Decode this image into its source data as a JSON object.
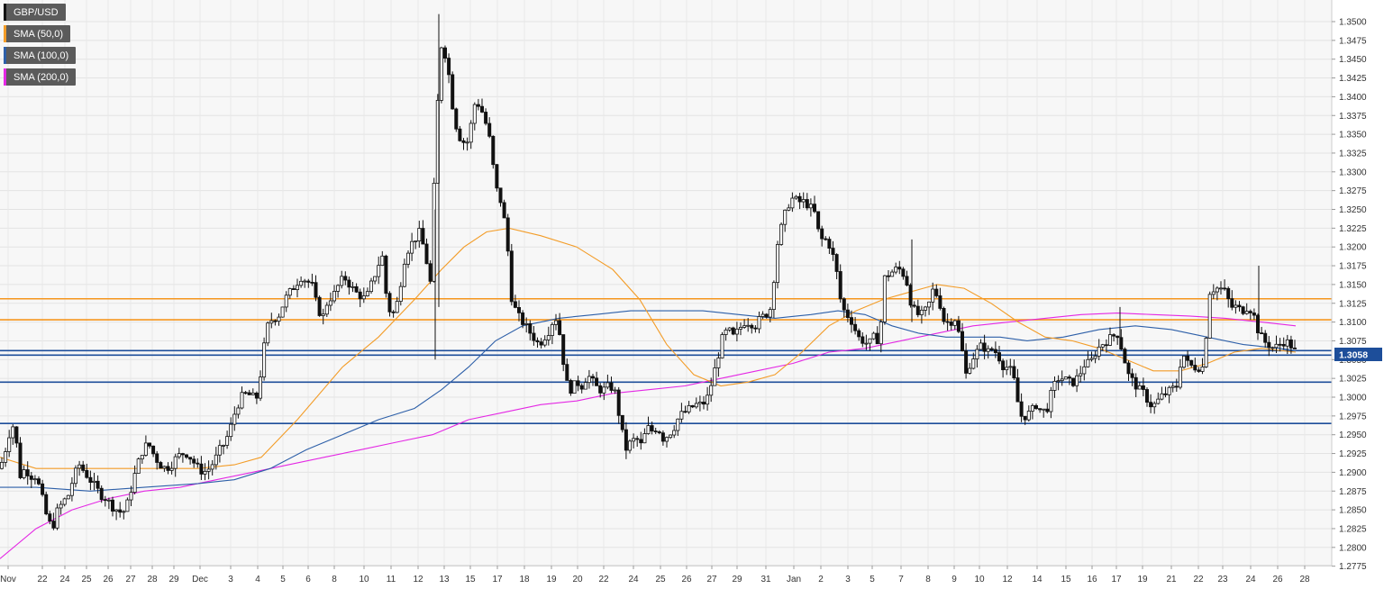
{
  "legend": [
    {
      "label": "GBP/USD",
      "color": "#000000"
    },
    {
      "label": "SMA (50,0)",
      "color": "#f39c27"
    },
    {
      "label": "SMA (100,0)",
      "color": "#2d5fa8"
    },
    {
      "label": "SMA (200,0)",
      "color": "#e428e4"
    }
  ],
  "last_price": "1.3058",
  "chart_data": {
    "type": "candlestick",
    "ylim": [
      1.2765,
      1.3515
    ],
    "y_ticks": [
      "1.3500",
      "1.3475",
      "1.3450",
      "1.3425",
      "1.3400",
      "1.3375",
      "1.3350",
      "1.3325",
      "1.3300",
      "1.3275",
      "1.3250",
      "1.3225",
      "1.3200",
      "1.3175",
      "1.3150",
      "1.3125",
      "1.3100",
      "1.3075",
      "1.3050",
      "1.3025",
      "1.3000",
      "1.2975",
      "1.2950",
      "1.2925",
      "1.2900",
      "1.2875",
      "1.2850",
      "1.2825",
      "1.2800",
      "1.2775"
    ],
    "x_labels": [
      "Nov",
      "22",
      "24",
      "25",
      "26",
      "27",
      "28",
      "29",
      "Dec",
      "3",
      "4",
      "5",
      "6",
      "8",
      "10",
      "11",
      "12",
      "13",
      "15",
      "17",
      "18",
      "19",
      "20",
      "22",
      "24",
      "25",
      "26",
      "27",
      "29",
      "31",
      "Jan",
      "2",
      "3",
      "5",
      "7",
      "8",
      "9",
      "10",
      "12",
      "14",
      "15",
      "16",
      "17",
      "19",
      "21",
      "22",
      "23",
      "24",
      "26",
      "28"
    ],
    "horizontal_levels": [
      {
        "value": 1.3131,
        "color": "#f5961e"
      },
      {
        "value": 1.3103,
        "color": "#f5961e"
      },
      {
        "value": 1.3062,
        "color": "#1d4e9a"
      },
      {
        "value": 1.3056,
        "color": "#1d4e9a"
      },
      {
        "value": 1.302,
        "color": "#1d4e9a"
      },
      {
        "value": 1.2965,
        "color": "#1d4e9a"
      }
    ],
    "anchors": [
      [
        0,
        1.2905
      ],
      [
        6,
        1.293
      ],
      [
        11,
        1.2955
      ],
      [
        16,
        1.2965
      ],
      [
        22,
        1.2895
      ],
      [
        28,
        1.2905
      ],
      [
        34,
        1.2895
      ],
      [
        40,
        1.2895
      ],
      [
        46,
        1.287
      ],
      [
        52,
        1.284
      ],
      [
        58,
        1.2825
      ],
      [
        64,
        1.285
      ],
      [
        70,
        1.286
      ],
      [
        76,
        1.287
      ],
      [
        82,
        1.2895
      ],
      [
        88,
        1.291
      ],
      [
        94,
        1.29
      ],
      [
        100,
        1.289
      ],
      [
        106,
        1.288
      ],
      [
        112,
        1.287
      ],
      [
        118,
        1.2865
      ],
      [
        124,
        1.2855
      ],
      [
        130,
        1.285
      ],
      [
        136,
        1.2845
      ],
      [
        142,
        1.286
      ],
      [
        148,
        1.289
      ],
      [
        154,
        1.2915
      ],
      [
        160,
        1.2935
      ],
      [
        166,
        1.2935
      ],
      [
        172,
        1.292
      ],
      [
        178,
        1.291
      ],
      [
        184,
        1.2905
      ],
      [
        190,
        1.291
      ],
      [
        196,
        1.292
      ],
      [
        202,
        1.2925
      ],
      [
        208,
        1.2925
      ],
      [
        214,
        1.2915
      ],
      [
        220,
        1.2905
      ],
      [
        226,
        1.29
      ],
      [
        232,
        1.2905
      ],
      [
        238,
        1.2915
      ],
      [
        244,
        1.293
      ],
      [
        250,
        1.294
      ],
      [
        256,
        1.296
      ],
      [
        262,
        1.2985
      ],
      [
        268,
        1.3
      ],
      [
        274,
        1.3005
      ],
      [
        280,
        1.3
      ],
      [
        286,
        1.3
      ],
      [
        292,
        1.306
      ],
      [
        298,
        1.31
      ],
      [
        304,
        1.3105
      ],
      [
        310,
        1.311
      ],
      [
        316,
        1.313
      ],
      [
        322,
        1.314
      ],
      [
        328,
        1.315
      ],
      [
        334,
        1.316
      ],
      [
        340,
        1.3155
      ],
      [
        346,
        1.315
      ],
      [
        352,
        1.312
      ],
      [
        358,
        1.3105
      ],
      [
        364,
        1.313
      ],
      [
        370,
        1.3135
      ],
      [
        376,
        1.315
      ],
      [
        382,
        1.316
      ],
      [
        388,
        1.315
      ],
      [
        394,
        1.314
      ],
      [
        400,
        1.3135
      ],
      [
        406,
        1.313
      ],
      [
        412,
        1.315
      ],
      [
        418,
        1.317
      ],
      [
        424,
        1.319
      ],
      [
        430,
        1.312
      ],
      [
        436,
        1.311
      ],
      [
        442,
        1.313
      ],
      [
        448,
        1.318
      ],
      [
        454,
        1.32
      ],
      [
        460,
        1.321
      ],
      [
        466,
        1.322
      ],
      [
        472,
        1.319
      ],
      [
        478,
        1.315
      ],
      [
        484,
        1.336
      ],
      [
        490,
        1.347
      ],
      [
        496,
        1.345
      ],
      [
        502,
        1.339
      ],
      [
        508,
        1.335
      ],
      [
        514,
        1.334
      ],
      [
        520,
        1.334
      ],
      [
        526,
        1.339
      ],
      [
        532,
        1.339
      ],
      [
        538,
        1.337
      ],
      [
        544,
        1.334
      ],
      [
        550,
        1.328
      ],
      [
        556,
        1.326
      ],
      [
        562,
        1.322
      ],
      [
        568,
        1.313
      ],
      [
        574,
        1.311
      ],
      [
        580,
        1.31
      ],
      [
        586,
        1.309
      ],
      [
        592,
        1.308
      ],
      [
        598,
        1.307
      ],
      [
        604,
        1.308
      ],
      [
        610,
        1.309
      ],
      [
        616,
        1.311
      ],
      [
        622,
        1.308
      ],
      [
        628,
        1.302
      ],
      [
        634,
        1.301
      ],
      [
        640,
        1.302
      ],
      [
        646,
        1.3015
      ],
      [
        652,
        1.303
      ],
      [
        658,
        1.302
      ],
      [
        664,
        1.301
      ],
      [
        670,
        1.301
      ],
      [
        676,
        1.3015
      ],
      [
        682,
        1.301
      ],
      [
        688,
        1.297
      ],
      [
        694,
        1.293
      ],
      [
        700,
        1.294
      ],
      [
        706,
        1.2945
      ],
      [
        712,
        1.2935
      ],
      [
        718,
        1.296
      ],
      [
        724,
        1.2955
      ],
      [
        730,
        1.296
      ],
      [
        736,
        1.2945
      ],
      [
        742,
        1.295
      ],
      [
        748,
        1.296
      ],
      [
        754,
        1.2975
      ],
      [
        760,
        1.298
      ],
      [
        766,
        1.2985
      ],
      [
        772,
        1.299
      ],
      [
        778,
        1.299
      ],
      [
        784,
        1.2995
      ],
      [
        790,
        1.302
      ],
      [
        796,
        1.305
      ],
      [
        802,
        1.308
      ],
      [
        808,
        1.309
      ],
      [
        814,
        1.308
      ],
      [
        820,
        1.309
      ],
      [
        826,
        1.31
      ],
      [
        832,
        1.31
      ],
      [
        838,
        1.3095
      ],
      [
        844,
        1.3105
      ],
      [
        850,
        1.311
      ],
      [
        856,
        1.312
      ],
      [
        862,
        1.32
      ],
      [
        868,
        1.323
      ],
      [
        874,
        1.3255
      ],
      [
        880,
        1.3265
      ],
      [
        886,
        1.326
      ],
      [
        892,
        1.326
      ],
      [
        898,
        1.3255
      ],
      [
        904,
        1.3245
      ],
      [
        910,
        1.321
      ],
      [
        916,
        1.321
      ],
      [
        922,
        1.32
      ],
      [
        928,
        1.317
      ],
      [
        934,
        1.312
      ],
      [
        940,
        1.311
      ],
      [
        946,
        1.31
      ],
      [
        952,
        1.308
      ],
      [
        958,
        1.3075
      ],
      [
        964,
        1.307
      ],
      [
        970,
        1.308
      ],
      [
        976,
        1.3075
      ],
      [
        982,
        1.316
      ],
      [
        988,
        1.3165
      ],
      [
        994,
        1.317
      ],
      [
        1000,
        1.317
      ],
      [
        1006,
        1.3155
      ],
      [
        1012,
        1.312
      ],
      [
        1018,
        1.311
      ],
      [
        1024,
        1.311
      ],
      [
        1030,
        1.312
      ],
      [
        1036,
        1.3145
      ],
      [
        1042,
        1.313
      ],
      [
        1048,
        1.31
      ],
      [
        1054,
        1.31
      ],
      [
        1060,
        1.3105
      ],
      [
        1066,
        1.3075
      ],
      [
        1072,
        1.303
      ],
      [
        1078,
        1.305
      ],
      [
        1084,
        1.306
      ],
      [
        1090,
        1.307
      ],
      [
        1096,
        1.306
      ],
      [
        1102,
        1.3065
      ],
      [
        1108,
        1.3055
      ],
      [
        1114,
        1.304
      ],
      [
        1120,
        1.304
      ],
      [
        1126,
        1.302
      ],
      [
        1132,
        1.2975
      ],
      [
        1138,
        1.2975
      ],
      [
        1144,
        1.298
      ],
      [
        1150,
        1.299
      ],
      [
        1156,
        1.298
      ],
      [
        1162,
        1.2985
      ],
      [
        1168,
        1.301
      ],
      [
        1174,
        1.3025
      ],
      [
        1180,
        1.3025
      ],
      [
        1186,
        1.302
      ],
      [
        1192,
        1.302
      ],
      [
        1198,
        1.303
      ],
      [
        1204,
        1.3045
      ],
      [
        1210,
        1.3045
      ],
      [
        1216,
        1.306
      ],
      [
        1222,
        1.307
      ],
      [
        1228,
        1.3075
      ],
      [
        1234,
        1.308
      ],
      [
        1240,
        1.3085
      ],
      [
        1246,
        1.306
      ],
      [
        1252,
        1.303
      ],
      [
        1258,
        1.302
      ],
      [
        1264,
        1.301
      ],
      [
        1270,
        1.3005
      ],
      [
        1276,
        1.299
      ],
      [
        1282,
        1.299
      ],
      [
        1288,
        1.3
      ],
      [
        1294,
        1.3005
      ],
      [
        1300,
        1.301
      ],
      [
        1306,
        1.3015
      ],
      [
        1312,
        1.306
      ],
      [
        1318,
        1.3045
      ],
      [
        1324,
        1.304
      ],
      [
        1330,
        1.304
      ],
      [
        1336,
        1.304
      ],
      [
        1342,
        1.314
      ],
      [
        1348,
        1.3145
      ],
      [
        1354,
        1.3145
      ],
      [
        1360,
        1.314
      ],
      [
        1366,
        1.312
      ],
      [
        1372,
        1.312
      ],
      [
        1378,
        1.3115
      ],
      [
        1384,
        1.312
      ],
      [
        1390,
        1.3115
      ],
      [
        1396,
        1.309
      ],
      [
        1402,
        1.3075
      ],
      [
        1408,
        1.307
      ],
      [
        1414,
        1.3065
      ],
      [
        1420,
        1.307
      ],
      [
        1426,
        1.3075
      ],
      [
        1432,
        1.307
      ],
      [
        1438,
        1.306
      ]
    ],
    "sma50": [
      [
        0,
        1.292
      ],
      [
        40,
        1.2905
      ],
      [
        100,
        1.2905
      ],
      [
        160,
        1.2905
      ],
      [
        220,
        1.2905
      ],
      [
        260,
        1.291
      ],
      [
        290,
        1.292
      ],
      [
        330,
        1.297
      ],
      [
        380,
        1.304
      ],
      [
        420,
        1.308
      ],
      [
        460,
        1.313
      ],
      [
        490,
        1.317
      ],
      [
        515,
        1.32
      ],
      [
        540,
        1.322
      ],
      [
        565,
        1.3225
      ],
      [
        600,
        1.3215
      ],
      [
        640,
        1.32
      ],
      [
        680,
        1.317
      ],
      [
        710,
        1.313
      ],
      [
        740,
        1.307
      ],
      [
        770,
        1.303
      ],
      [
        800,
        1.3015
      ],
      [
        830,
        1.302
      ],
      [
        860,
        1.303
      ],
      [
        890,
        1.306
      ],
      [
        920,
        1.3095
      ],
      [
        950,
        1.3115
      ],
      [
        980,
        1.313
      ],
      [
        1010,
        1.314
      ],
      [
        1040,
        1.315
      ],
      [
        1070,
        1.3145
      ],
      [
        1100,
        1.3125
      ],
      [
        1130,
        1.31
      ],
      [
        1160,
        1.308
      ],
      [
        1190,
        1.3075
      ],
      [
        1220,
        1.3065
      ],
      [
        1250,
        1.305
      ],
      [
        1280,
        1.3035
      ],
      [
        1310,
        1.3035
      ],
      [
        1340,
        1.3045
      ],
      [
        1370,
        1.306
      ],
      [
        1400,
        1.3065
      ],
      [
        1438,
        1.306
      ]
    ],
    "sma100": [
      [
        0,
        1.288
      ],
      [
        40,
        1.288
      ],
      [
        100,
        1.2875
      ],
      [
        160,
        1.288
      ],
      [
        220,
        1.2885
      ],
      [
        260,
        1.289
      ],
      [
        300,
        1.2905
      ],
      [
        340,
        1.293
      ],
      [
        380,
        1.295
      ],
      [
        420,
        1.297
      ],
      [
        460,
        1.2985
      ],
      [
        490,
        1.301
      ],
      [
        520,
        1.304
      ],
      [
        550,
        1.3075
      ],
      [
        580,
        1.3095
      ],
      [
        620,
        1.3105
      ],
      [
        660,
        1.311
      ],
      [
        700,
        1.3115
      ],
      [
        740,
        1.3115
      ],
      [
        780,
        1.3115
      ],
      [
        820,
        1.311
      ],
      [
        860,
        1.3105
      ],
      [
        900,
        1.311
      ],
      [
        930,
        1.3115
      ],
      [
        960,
        1.311
      ],
      [
        990,
        1.3095
      ],
      [
        1020,
        1.3085
      ],
      [
        1050,
        1.308
      ],
      [
        1080,
        1.308
      ],
      [
        1110,
        1.308
      ],
      [
        1140,
        1.3075
      ],
      [
        1180,
        1.308
      ],
      [
        1220,
        1.309
      ],
      [
        1260,
        1.3095
      ],
      [
        1300,
        1.309
      ],
      [
        1340,
        1.308
      ],
      [
        1380,
        1.307
      ],
      [
        1420,
        1.3065
      ],
      [
        1438,
        1.3062
      ]
    ],
    "sma200": [
      [
        0,
        1.2785
      ],
      [
        40,
        1.2825
      ],
      [
        80,
        1.285
      ],
      [
        120,
        1.2865
      ],
      [
        160,
        1.2875
      ],
      [
        200,
        1.288
      ],
      [
        240,
        1.289
      ],
      [
        280,
        1.29
      ],
      [
        320,
        1.291
      ],
      [
        360,
        1.292
      ],
      [
        400,
        1.293
      ],
      [
        440,
        1.294
      ],
      [
        480,
        1.295
      ],
      [
        520,
        1.297
      ],
      [
        560,
        1.298
      ],
      [
        600,
        1.299
      ],
      [
        640,
        1.2995
      ],
      [
        680,
        1.3005
      ],
      [
        720,
        1.301
      ],
      [
        760,
        1.3015
      ],
      [
        800,
        1.3025
      ],
      [
        840,
        1.3035
      ],
      [
        880,
        1.3045
      ],
      [
        920,
        1.306
      ],
      [
        960,
        1.3065
      ],
      [
        1000,
        1.3075
      ],
      [
        1040,
        1.3085
      ],
      [
        1080,
        1.3095
      ],
      [
        1120,
        1.31
      ],
      [
        1160,
        1.3105
      ],
      [
        1200,
        1.311
      ],
      [
        1240,
        1.3112
      ],
      [
        1280,
        1.311
      ],
      [
        1320,
        1.3108
      ],
      [
        1360,
        1.3105
      ],
      [
        1400,
        1.31
      ],
      [
        1438,
        1.3095
      ]
    ]
  }
}
